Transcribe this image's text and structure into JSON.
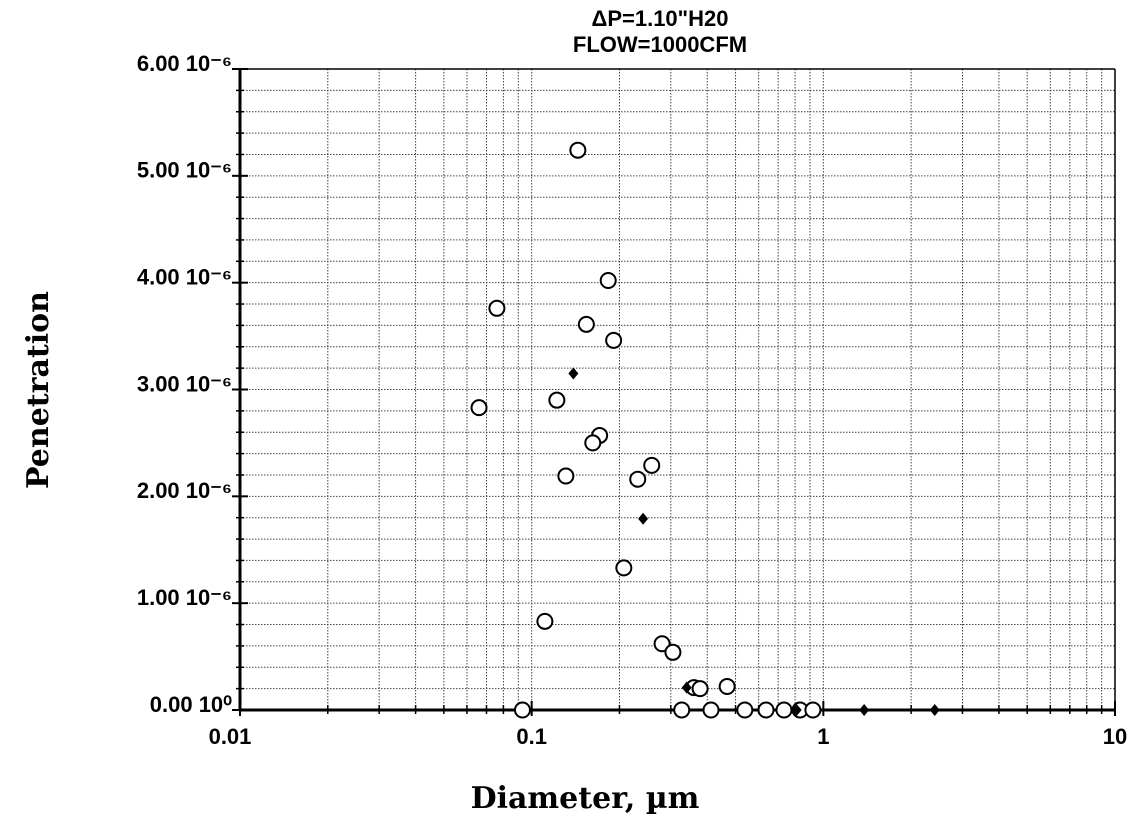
{
  "chart_data": {
    "type": "scatter",
    "title": [
      "ΔP=1.10\"H20",
      "FLOW=1000CFM"
    ],
    "x_label": "Diameter, µm",
    "y_label": "Penetration",
    "xscale": "log",
    "xlim": [
      0.01,
      10
    ],
    "xticks": [
      0.01,
      0.1,
      1,
      10
    ],
    "ylim": [
      0,
      6e-06
    ],
    "yticks": [
      {
        "value": 0,
        "label": "0.00 10⁰"
      },
      {
        "value": 1e-06,
        "label": "1.00 10⁻⁶"
      },
      {
        "value": 2e-06,
        "label": "2.00 10⁻⁶"
      },
      {
        "value": 3e-06,
        "label": "3.00 10⁻⁶"
      },
      {
        "value": 4e-06,
        "label": "4.00 10⁻⁶"
      },
      {
        "value": 5e-06,
        "label": "5.00 10⁻⁶"
      },
      {
        "value": 6e-06,
        "label": "6.00 10⁻⁶"
      }
    ],
    "grid": true,
    "minor_grid": true,
    "series": [
      {
        "color": "#000000",
        "marker": "open-circle",
        "x": [
          0.144,
          0.183,
          0.076,
          0.154,
          0.191,
          0.066,
          0.122,
          0.171,
          0.162,
          0.258,
          0.131,
          0.231,
          0.207,
          0.111,
          0.28,
          0.305,
          0.36,
          0.378,
          0.468,
          0.093,
          0.327,
          0.412,
          0.538,
          0.636,
          0.733,
          0.832,
          0.921
        ],
        "values": [
          5.24e-06,
          4.02e-06,
          3.76e-06,
          3.61e-06,
          3.46e-06,
          2.83e-06,
          2.9e-06,
          2.57e-06,
          2.5e-06,
          2.29e-06,
          2.19e-06,
          2.16e-06,
          1.33e-06,
          8.3e-07,
          6.2e-07,
          5.4e-07,
          2.1e-07,
          2e-07,
          2.2e-07,
          0,
          0,
          0,
          0,
          0,
          0,
          0,
          0
        ]
      },
      {
        "color": "#000000",
        "marker": "filled-diamond",
        "x": [
          0.139,
          0.241,
          0.34,
          0.81,
          1.38,
          2.41
        ],
        "values": [
          3.15e-06,
          1.79e-06,
          2.1e-07,
          0,
          0,
          0
        ]
      }
    ]
  }
}
